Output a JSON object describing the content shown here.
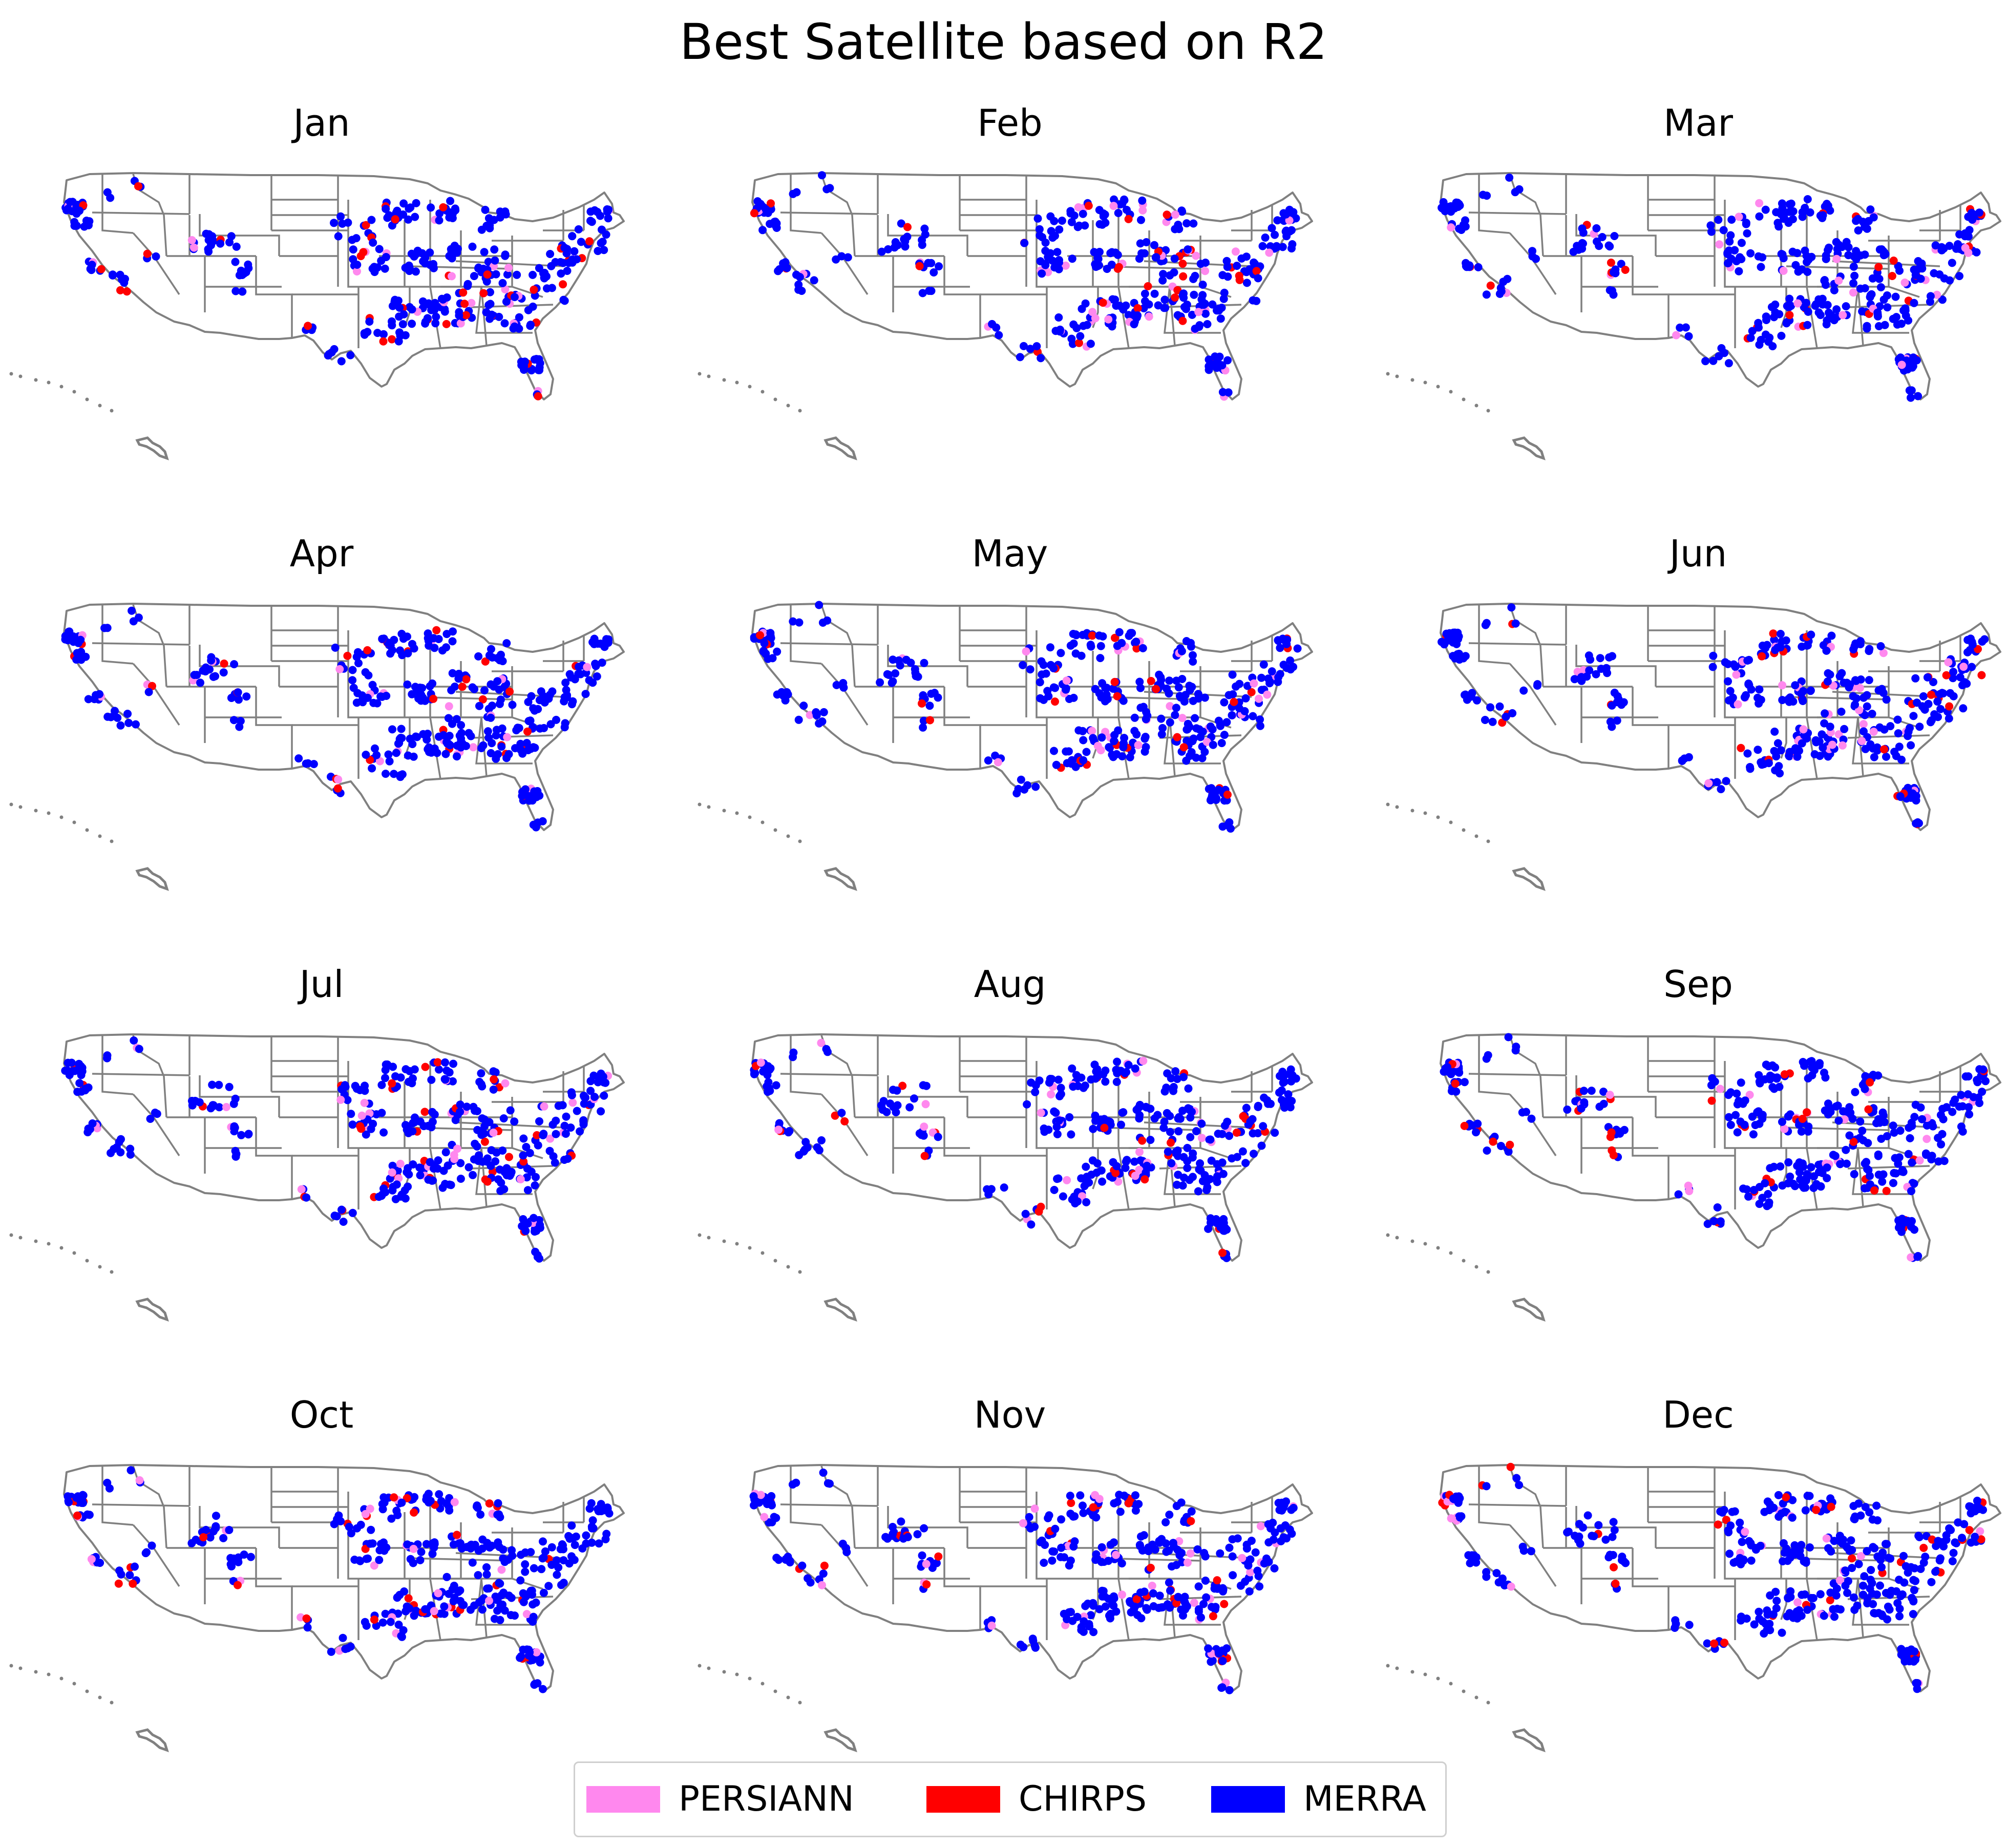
{
  "title": "Best Satellite based on R2",
  "months": [
    "Jan",
    "Feb",
    "Mar",
    "Apr",
    "May",
    "Jun",
    "Jul",
    "Aug",
    "Sep",
    "Oct",
    "Nov",
    "Dec"
  ],
  "legend": [
    {
      "label": "PERSIANN",
      "color": "#ff88ee"
    },
    {
      "label": "CHIRPS",
      "color": "#ff0000"
    },
    {
      "label": "MERRA",
      "color": "#0000ff"
    }
  ],
  "map_style": {
    "state_border_color": "#808080",
    "background_color": "#ffffff"
  }
}
